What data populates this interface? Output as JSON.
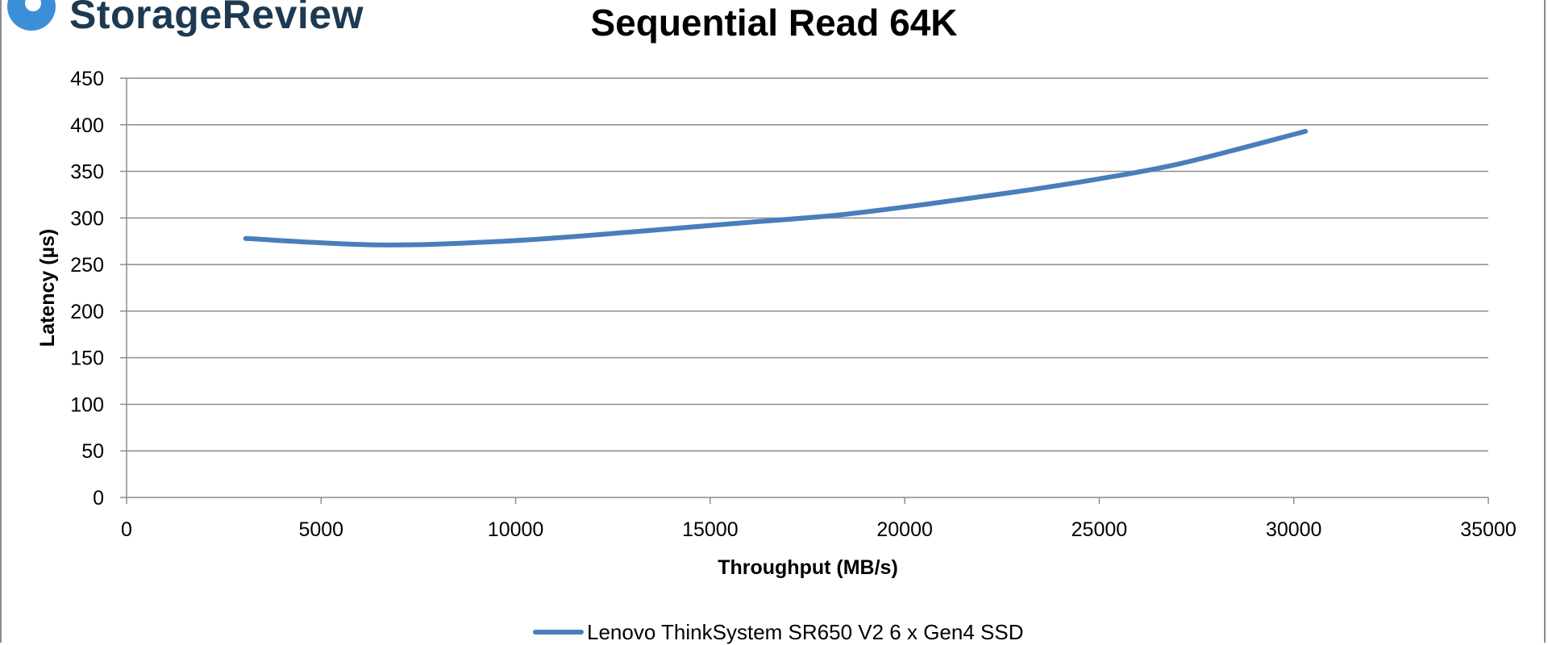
{
  "brand": {
    "name": "StorageReview",
    "logo_color": "#3b8fd9",
    "text_color": "#1d3a52"
  },
  "chart_data": {
    "type": "line",
    "title": "Sequential Read 64K",
    "xlabel": "Throughput (MB/s)",
    "ylabel": "Latency (µs)",
    "xlim": [
      0,
      35000
    ],
    "ylim": [
      0,
      450
    ],
    "x_ticks": [
      0,
      5000,
      10000,
      15000,
      20000,
      25000,
      30000,
      35000
    ],
    "y_ticks": [
      0,
      50,
      100,
      150,
      200,
      250,
      300,
      350,
      400,
      450
    ],
    "grid": true,
    "legend_position": "bottom",
    "series": [
      {
        "name": "Lenovo ThinkSystem SR650 V2 6 x Gen4 SSD",
        "color": "#4a7ebb",
        "x": [
          3060,
          6450,
          9680,
          12700,
          15600,
          18250,
          20600,
          22850,
          25000,
          27150,
          30300
        ],
        "y": [
          278,
          271,
          275,
          284,
          294,
          303,
          315,
          328,
          342,
          359,
          393
        ]
      }
    ]
  }
}
